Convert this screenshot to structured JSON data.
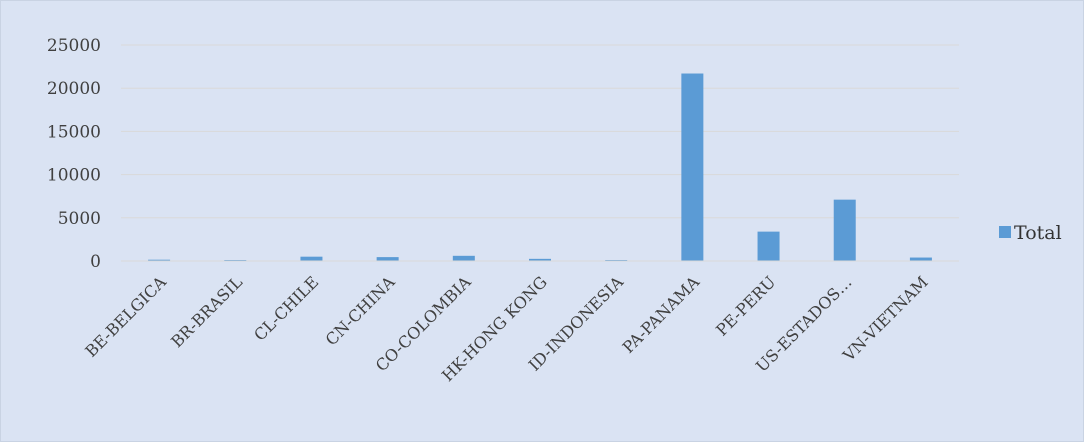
{
  "chart_data": {
    "type": "bar",
    "categories": [
      "BE-BELGICA",
      "BR-BRASIL",
      "CL-CHILE",
      "CN-CHINA",
      "CO-COLOMBIA",
      "HK-HONG KONG",
      "ID-INDONESIA",
      "PA-PANAMA",
      "PE-PERU",
      "US-ESTADOS…",
      "VN-VIETNAM"
    ],
    "series": [
      {
        "name": "Total",
        "values": [
          150,
          60,
          500,
          450,
          600,
          250,
          60,
          21700,
          3400,
          7100,
          400
        ]
      }
    ],
    "ylim": [
      0,
      25000
    ],
    "yticks": [
      0,
      5000,
      10000,
      15000,
      20000,
      25000
    ],
    "grid": true,
    "legend": "right",
    "colors": {
      "bar": "#5b9bd5",
      "background": "#dae3f3",
      "grid": "#d9d9d9"
    }
  }
}
